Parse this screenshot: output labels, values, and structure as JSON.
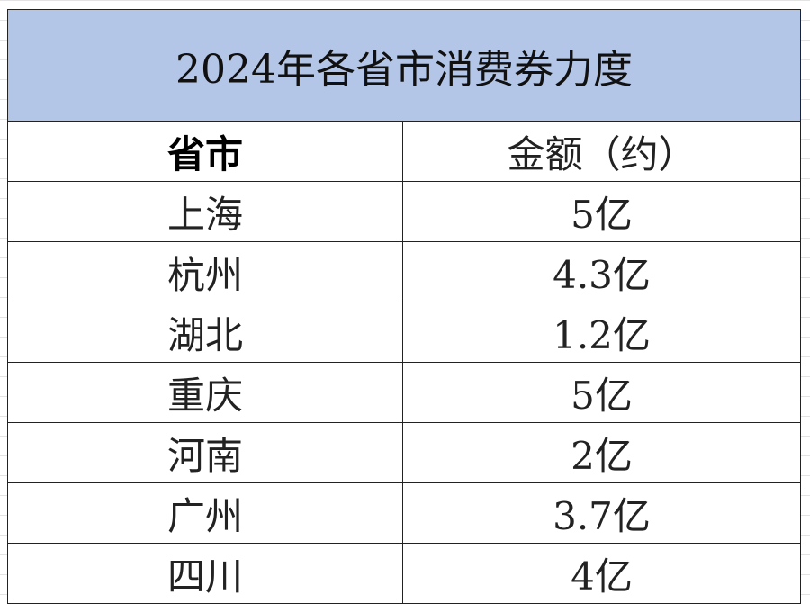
{
  "table": {
    "title": "2024年各省市消费券力度",
    "header": [
      "省市",
      "金额（约）"
    ],
    "rows": [
      [
        "上海",
        "5亿"
      ],
      [
        "杭州",
        "4.3亿"
      ],
      [
        "湖北",
        "1.2亿"
      ],
      [
        "重庆",
        "5亿"
      ],
      [
        "河南",
        "2亿"
      ],
      [
        "广州",
        "3.7亿"
      ],
      [
        "四川",
        "4亿"
      ]
    ]
  }
}
